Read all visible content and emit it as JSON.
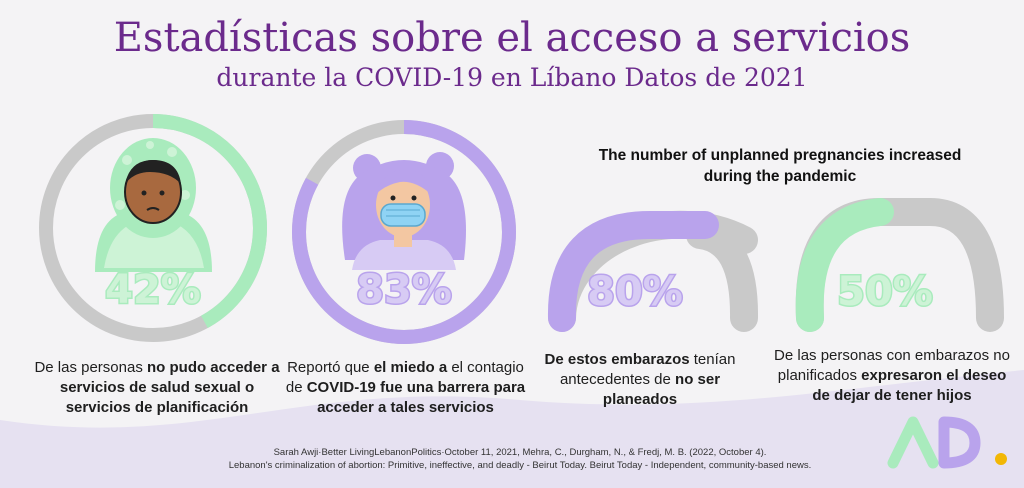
{
  "title": "Estadísticas sobre el acceso a servicios",
  "subtitle": "durante la COVID-19 en Líbano Datos de 2021",
  "pregnancy_heading": "The number of unplanned pregnancies increased during the pandemic",
  "colors": {
    "title": "#6b2a8c",
    "green": "#a9ebbd",
    "purple": "#b9a3ec",
    "gray": "#c9c9c9"
  },
  "stats": [
    {
      "value": 42,
      "label": "42%",
      "caption": {
        "p1": "De las personas ",
        "b1": "no pudo acceder a servicios de salud sexual o servicios de planificación",
        "p2": "",
        "b2": "",
        "p3": ""
      }
    },
    {
      "value": 83,
      "label": "83%",
      "caption": {
        "p1": "Reportó que ",
        "b1": "el miedo a",
        "p2": " el contagio de ",
        "b2": "COVID-19 fue una barrera para acceder a tales servicios",
        "p3": ""
      }
    },
    {
      "value": 80,
      "label": "80%",
      "caption": {
        "p1": "",
        "b1": "De estos embarazos",
        "p2": " tenían antecedentes de ",
        "b2": "no ser planeados",
        "p3": ""
      }
    },
    {
      "value": 50,
      "label": "50%",
      "caption": {
        "p1": "De las personas con embarazos no planificados ",
        "b1": "expresaron el deseo de dejar de tener hijos",
        "p2": "",
        "b2": "",
        "p3": ""
      }
    }
  ],
  "source": {
    "line1": "Sarah Awji·Better LivingLebanonPolitics·October 11, 2021, Mehra, C., Durgham, N., & Fredj, M. B. (2022, October 4).",
    "line2": "Lebanon's criminalization of abortion: Primitive, ineffective, and deadly - Beirut Today. Beirut Today - Independent, community-based news."
  },
  "logo": {
    "text": "AD",
    "dot_color": "#f2b705"
  }
}
